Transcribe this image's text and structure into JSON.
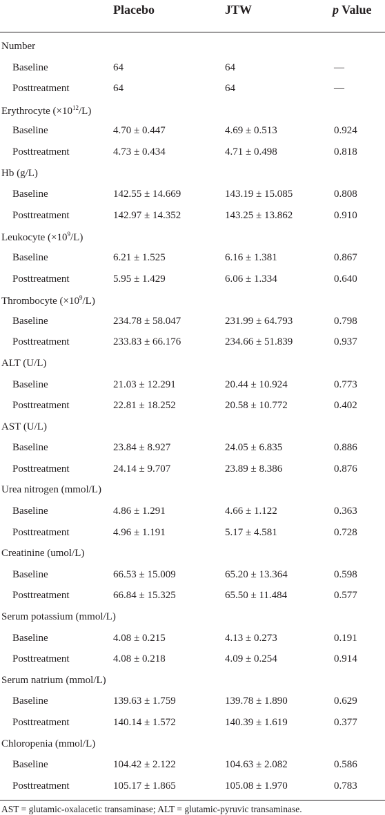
{
  "header": {
    "col1": "Placebo",
    "col2": "JTW",
    "col3_italic": "p",
    "col3_rest": " Value"
  },
  "groups": [
    {
      "title": "Number",
      "rows": [
        {
          "label": "Baseline",
          "placebo": "64",
          "jtw": "64",
          "p": "—"
        },
        {
          "label": "Posttreatment",
          "placebo": "64",
          "jtw": "64",
          "p": "—"
        }
      ]
    },
    {
      "title_pre": "Erythrocyte (×10",
      "title_sup": "12",
      "title_post": "/L)",
      "rows": [
        {
          "label": "Baseline",
          "placebo": "4.70 ± 0.447",
          "jtw": "4.69 ± 0.513",
          "p": "0.924"
        },
        {
          "label": "Posttreatment",
          "placebo": "4.73 ± 0.434",
          "jtw": "4.71 ± 0.498",
          "p": "0.818"
        }
      ]
    },
    {
      "title": "Hb (g/L)",
      "rows": [
        {
          "label": "Baseline",
          "placebo": "142.55 ± 14.669",
          "jtw": "143.19 ± 15.085",
          "p": "0.808"
        },
        {
          "label": "Posttreatment",
          "placebo": "142.97 ± 14.352",
          "jtw": "143.25 ± 13.862",
          "p": "0.910"
        }
      ]
    },
    {
      "title_pre": "Leukocyte (×10",
      "title_sup": "9",
      "title_post": "/L)",
      "rows": [
        {
          "label": "Baseline",
          "placebo": "6.21 ± 1.525",
          "jtw": "6.16 ± 1.381",
          "p": "0.867"
        },
        {
          "label": "Posttreatment",
          "placebo": "5.95 ± 1.429",
          "jtw": "6.06 ± 1.334",
          "p": "0.640"
        }
      ]
    },
    {
      "title_pre": "Thrombocyte (×10",
      "title_sup": "9",
      "title_post": "/L)",
      "rows": [
        {
          "label": "Baseline",
          "placebo": "234.78 ± 58.047",
          "jtw": "231.99 ± 64.793",
          "p": "0.798"
        },
        {
          "label": "Posttreatment",
          "placebo": "233.83 ± 66.176",
          "jtw": "234.66 ± 51.839",
          "p": "0.937"
        }
      ]
    },
    {
      "title": "ALT (U/L)",
      "rows": [
        {
          "label": "Baseline",
          "placebo": "21.03 ± 12.291",
          "jtw": "20.44 ± 10.924",
          "p": "0.773"
        },
        {
          "label": "Posttreatment",
          "placebo": "22.81 ± 18.252",
          "jtw": "20.58 ± 10.772",
          "p": "0.402"
        }
      ]
    },
    {
      "title": "AST (U/L)",
      "rows": [
        {
          "label": "Baseline",
          "placebo": "23.84 ± 8.927",
          "jtw": "24.05 ± 6.835",
          "p": "0.886"
        },
        {
          "label": "Posttreatment",
          "placebo": "24.14 ± 9.707",
          "jtw": "23.89 ± 8.386",
          "p": "0.876"
        }
      ]
    },
    {
      "title": "Urea nitrogen (mmol/L)",
      "rows": [
        {
          "label": "Baseline",
          "placebo": "4.86 ± 1.291",
          "jtw": "4.66 ± 1.122",
          "p": "0.363"
        },
        {
          "label": "Posttreatment",
          "placebo": "4.96 ± 1.191",
          "jtw": "5.17 ± 4.581",
          "p": "0.728"
        }
      ]
    },
    {
      "title": "Creatinine (umol/L)",
      "rows": [
        {
          "label": "Baseline",
          "placebo": "66.53 ± 15.009",
          "jtw": "65.20 ± 13.364",
          "p": "0.598"
        },
        {
          "label": "Posttreatment",
          "placebo": "66.84 ± 15.325",
          "jtw": "65.50 ± 11.484",
          "p": "0.577"
        }
      ]
    },
    {
      "title": "Serum potassium (mmol/L)",
      "rows": [
        {
          "label": "Baseline",
          "placebo": "4.08 ± 0.215",
          "jtw": "4.13 ± 0.273",
          "p": "0.191"
        },
        {
          "label": "Posttreatment",
          "placebo": "4.08 ± 0.218",
          "jtw": "4.09 ± 0.254",
          "p": "0.914"
        }
      ]
    },
    {
      "title": "Serum natrium (mmol/L)",
      "rows": [
        {
          "label": "Baseline",
          "placebo": "139.63 ± 1.759",
          "jtw": "139.78 ± 1.890",
          "p": "0.629"
        },
        {
          "label": "Posttreatment",
          "placebo": "140.14 ± 1.572",
          "jtw": "140.39 ± 1.619",
          "p": "0.377"
        }
      ]
    },
    {
      "title": "Chloropenia (mmol/L)",
      "rows": [
        {
          "label": "Baseline",
          "placebo": "104.42 ± 2.122",
          "jtw": "104.63 ± 2.082",
          "p": "0.586"
        },
        {
          "label": "Posttreatment",
          "placebo": "105.17 ± 1.865",
          "jtw": "105.08 ± 1.970",
          "p": "0.783"
        }
      ]
    }
  ],
  "footnote": "AST = glutamic-oxalacetic transaminase; ALT = glutamic-pyruvic transaminase."
}
